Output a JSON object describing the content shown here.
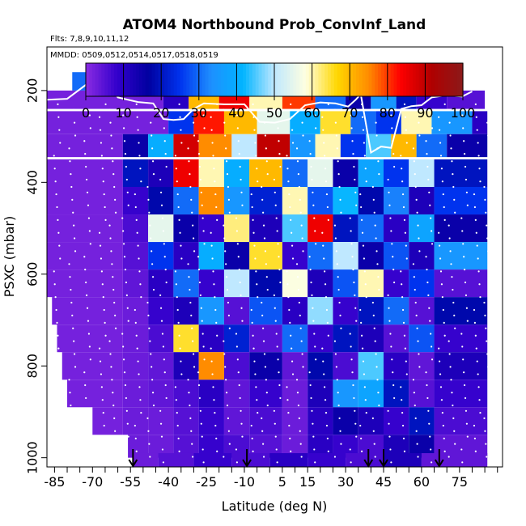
{
  "chart_data": {
    "type": "heatmap",
    "title": "ATOM4 Northbound Prob_ConvInf_Land",
    "flights_note": "Flts: 7,8,9,10,11,12",
    "dates_note": "MMDD: 0509,0512,0514,0517,0518,0519",
    "xlabel": "Latitude (deg N)",
    "ylabel": "PSXC (mbar)",
    "xlim": [
      -88,
      92
    ],
    "ylim": [
      1020,
      105
    ],
    "x_ticks_minor_step": 5,
    "x_tick_labels": [
      "-85",
      "-70",
      "-55",
      "-40",
      "-25",
      "-10",
      "5",
      "15",
      "30",
      "45",
      "60",
      "75"
    ],
    "x_tick_values": [
      -85,
      -70,
      -55,
      -40,
      -25,
      -10,
      5,
      15,
      30,
      45,
      60,
      75
    ],
    "y_tick_labels": [
      "200",
      "400",
      "600",
      "800",
      "1000"
    ],
    "y_tick_values": [
      200,
      400,
      600,
      800,
      1000
    ],
    "colorbar": {
      "min": 0,
      "max": 100,
      "tick_labels": [
        "0",
        "10",
        "20",
        "30",
        "40",
        "50",
        "60",
        "70",
        "80",
        "90",
        "100"
      ],
      "tick_values": [
        0,
        10,
        20,
        30,
        40,
        50,
        60,
        70,
        80,
        90,
        100
      ],
      "colors": [
        "#8a2be2",
        "#3300cc",
        "#0000a0",
        "#0033ee",
        "#1e90ff",
        "#00b4ff",
        "#bfe8ff",
        "#ffffe0",
        "#ffd700",
        "#ff8c00",
        "#ff0000",
        "#b00000",
        "#8b1a1a"
      ]
    },
    "arrows_lat": [
      -54,
      -9,
      39,
      45,
      67
    ],
    "layers": [
      {
        "p": 180,
        "h": 40,
        "cells": [
          [
            -78,
            -8,
            30
          ],
          [
            -8,
            5,
            75
          ],
          [
            5,
            15,
            55
          ],
          [
            15,
            28,
            40
          ],
          [
            28,
            42,
            20
          ],
          [
            42,
            58,
            10
          ],
          [
            58,
            70,
            5
          ]
        ]
      },
      {
        "p": 220,
        "h": 40,
        "cells": [
          [
            -88,
            -42,
            2
          ],
          [
            -42,
            -32,
            10
          ],
          [
            -32,
            -20,
            70
          ],
          [
            -20,
            -8,
            85
          ],
          [
            -8,
            5,
            60
          ],
          [
            5,
            18,
            80
          ],
          [
            18,
            30,
            30
          ],
          [
            30,
            40,
            15
          ],
          [
            40,
            50,
            35
          ],
          [
            50,
            58,
            20
          ],
          [
            58,
            70,
            8
          ],
          [
            70,
            85,
            5
          ]
        ]
      },
      {
        "p": 270,
        "h": 50,
        "cells": [
          [
            -88,
            -40,
            2
          ],
          [
            -40,
            -30,
            25
          ],
          [
            -30,
            -18,
            82
          ],
          [
            -18,
            -5,
            70
          ],
          [
            -5,
            8,
            55
          ],
          [
            8,
            20,
            40
          ],
          [
            20,
            32,
            65
          ],
          [
            32,
            42,
            30
          ],
          [
            42,
            52,
            25
          ],
          [
            52,
            64,
            60
          ],
          [
            64,
            80,
            35
          ],
          [
            80,
            86,
            10
          ]
        ]
      },
      {
        "p": 320,
        "h": 50,
        "cells": [
          [
            -88,
            -58,
            2
          ],
          [
            -58,
            -48,
            15
          ],
          [
            -48,
            -38,
            40
          ],
          [
            -38,
            -28,
            88
          ],
          [
            -28,
            -15,
            75
          ],
          [
            -15,
            -5,
            50
          ],
          [
            -5,
            8,
            90
          ],
          [
            8,
            18,
            35
          ],
          [
            18,
            28,
            60
          ],
          [
            28,
            38,
            25
          ],
          [
            38,
            48,
            45
          ],
          [
            48,
            58,
            70
          ],
          [
            58,
            70,
            30
          ],
          [
            70,
            86,
            15
          ]
        ]
      },
      {
        "p": 380,
        "h": 60,
        "cells": [
          [
            -88,
            -58,
            2
          ],
          [
            -58,
            -48,
            20
          ],
          [
            -48,
            -38,
            12
          ],
          [
            -38,
            -28,
            85
          ],
          [
            -28,
            -18,
            60
          ],
          [
            -18,
            -8,
            40
          ],
          [
            -8,
            5,
            70
          ],
          [
            5,
            15,
            30
          ],
          [
            15,
            25,
            55
          ],
          [
            25,
            35,
            15
          ],
          [
            35,
            45,
            38
          ],
          [
            45,
            55,
            25
          ],
          [
            55,
            65,
            50
          ],
          [
            65,
            86,
            20
          ]
        ]
      },
      {
        "p": 440,
        "h": 60,
        "cells": [
          [
            -88,
            -58,
            2
          ],
          [
            -58,
            -48,
            8
          ],
          [
            -48,
            -38,
            18
          ],
          [
            -38,
            -28,
            30
          ],
          [
            -28,
            -18,
            75
          ],
          [
            -18,
            -8,
            35
          ],
          [
            -8,
            5,
            22
          ],
          [
            5,
            15,
            60
          ],
          [
            15,
            25,
            28
          ],
          [
            25,
            35,
            42
          ],
          [
            35,
            45,
            18
          ],
          [
            45,
            55,
            32
          ],
          [
            55,
            65,
            12
          ],
          [
            65,
            86,
            25
          ]
        ]
      },
      {
        "p": 500,
        "h": 60,
        "cells": [
          [
            -88,
            -58,
            2
          ],
          [
            -58,
            -48,
            6
          ],
          [
            -48,
            -38,
            55
          ],
          [
            -38,
            -28,
            15
          ],
          [
            -28,
            -18,
            8
          ],
          [
            -18,
            -8,
            62
          ],
          [
            -8,
            5,
            12
          ],
          [
            5,
            15,
            45
          ],
          [
            15,
            25,
            85
          ],
          [
            25,
            35,
            20
          ],
          [
            35,
            45,
            30
          ],
          [
            45,
            55,
            10
          ],
          [
            55,
            65,
            38
          ],
          [
            65,
            86,
            15
          ]
        ]
      },
      {
        "p": 560,
        "h": 60,
        "cells": [
          [
            -88,
            -58,
            2
          ],
          [
            -58,
            -48,
            5
          ],
          [
            -48,
            -38,
            25
          ],
          [
            -38,
            -28,
            10
          ],
          [
            -28,
            -18,
            40
          ],
          [
            -18,
            -8,
            15
          ],
          [
            -8,
            5,
            65
          ],
          [
            5,
            15,
            8
          ],
          [
            15,
            25,
            30
          ],
          [
            25,
            35,
            50
          ],
          [
            35,
            45,
            15
          ],
          [
            45,
            55,
            28
          ],
          [
            55,
            65,
            12
          ],
          [
            65,
            86,
            35
          ]
        ]
      },
      {
        "p": 620,
        "h": 60,
        "cells": [
          [
            -88,
            -58,
            2
          ],
          [
            -58,
            -48,
            4
          ],
          [
            -48,
            -38,
            10
          ],
          [
            -38,
            -28,
            30
          ],
          [
            -28,
            -18,
            8
          ],
          [
            -18,
            -8,
            50
          ],
          [
            -8,
            5,
            18
          ],
          [
            5,
            15,
            58
          ],
          [
            15,
            25,
            12
          ],
          [
            25,
            35,
            28
          ],
          [
            35,
            45,
            60
          ],
          [
            45,
            55,
            8
          ],
          [
            55,
            65,
            25
          ],
          [
            65,
            86,
            5
          ]
        ]
      },
      {
        "p": 680,
        "h": 60,
        "cells": [
          [
            -86,
            -58,
            2
          ],
          [
            -58,
            -48,
            3
          ],
          [
            -48,
            -38,
            8
          ],
          [
            -38,
            -28,
            12
          ],
          [
            -28,
            -18,
            35
          ],
          [
            -18,
            -8,
            5
          ],
          [
            -8,
            5,
            28
          ],
          [
            5,
            15,
            10
          ],
          [
            15,
            25,
            48
          ],
          [
            25,
            35,
            8
          ],
          [
            35,
            45,
            20
          ],
          [
            45,
            55,
            30
          ],
          [
            55,
            65,
            5
          ],
          [
            65,
            86,
            18
          ]
        ]
      },
      {
        "p": 740,
        "h": 60,
        "cells": [
          [
            -84,
            -58,
            2
          ],
          [
            -58,
            -48,
            3
          ],
          [
            -48,
            -38,
            6
          ],
          [
            -38,
            -28,
            65
          ],
          [
            -28,
            -18,
            10
          ],
          [
            -18,
            -8,
            22
          ],
          [
            -8,
            5,
            5
          ],
          [
            5,
            15,
            30
          ],
          [
            15,
            25,
            8
          ],
          [
            25,
            35,
            20
          ],
          [
            35,
            45,
            12
          ],
          [
            45,
            55,
            5
          ],
          [
            55,
            65,
            28
          ],
          [
            65,
            86,
            8
          ]
        ]
      },
      {
        "p": 800,
        "h": 60,
        "cells": [
          [
            -82,
            -58,
            2
          ],
          [
            -58,
            -48,
            3
          ],
          [
            -48,
            -38,
            4
          ],
          [
            -38,
            -28,
            12
          ],
          [
            -28,
            -18,
            75
          ],
          [
            -18,
            -8,
            6
          ],
          [
            -8,
            5,
            15
          ],
          [
            5,
            15,
            4
          ],
          [
            15,
            25,
            18
          ],
          [
            25,
            35,
            6
          ],
          [
            35,
            45,
            45
          ],
          [
            45,
            55,
            10
          ],
          [
            55,
            65,
            4
          ],
          [
            65,
            86,
            12
          ]
        ]
      },
      {
        "p": 860,
        "h": 60,
        "cells": [
          [
            -80,
            -58,
            2
          ],
          [
            -58,
            -48,
            3
          ],
          [
            -48,
            -38,
            4
          ],
          [
            -38,
            -28,
            6
          ],
          [
            -28,
            -18,
            10
          ],
          [
            -18,
            -8,
            4
          ],
          [
            -8,
            5,
            8
          ],
          [
            5,
            15,
            3
          ],
          [
            15,
            25,
            12
          ],
          [
            25,
            35,
            35
          ],
          [
            35,
            45,
            38
          ],
          [
            45,
            55,
            20
          ],
          [
            55,
            65,
            5
          ],
          [
            65,
            86,
            8
          ]
        ]
      },
      {
        "p": 920,
        "h": 60,
        "cells": [
          [
            -70,
            -58,
            2
          ],
          [
            -58,
            -48,
            3
          ],
          [
            -48,
            -38,
            3
          ],
          [
            -38,
            -28,
            5
          ],
          [
            -28,
            -18,
            8
          ],
          [
            -18,
            -8,
            4
          ],
          [
            -8,
            5,
            6
          ],
          [
            5,
            15,
            3
          ],
          [
            15,
            25,
            10
          ],
          [
            25,
            35,
            15
          ],
          [
            35,
            45,
            12
          ],
          [
            45,
            55,
            8
          ],
          [
            55,
            65,
            20
          ],
          [
            65,
            86,
            6
          ]
        ]
      },
      {
        "p": 975,
        "h": 50,
        "cells": [
          [
            -56,
            -48,
            3
          ],
          [
            -48,
            -38,
            3
          ],
          [
            -38,
            -28,
            5
          ],
          [
            -28,
            -18,
            8
          ],
          [
            -18,
            -8,
            6
          ],
          [
            -8,
            5,
            5
          ],
          [
            5,
            15,
            3
          ],
          [
            15,
            25,
            10
          ],
          [
            25,
            35,
            8
          ],
          [
            35,
            45,
            6
          ],
          [
            45,
            55,
            12
          ],
          [
            55,
            65,
            15
          ],
          [
            65,
            86,
            4
          ]
        ]
      },
      {
        "p": 1005,
        "h": 30,
        "cells": [
          [
            -54,
            -44,
            3
          ],
          [
            -44,
            -30,
            5
          ],
          [
            -30,
            -15,
            8
          ],
          [
            -15,
            0,
            6
          ],
          [
            0,
            15,
            10
          ],
          [
            15,
            30,
            8
          ],
          [
            30,
            45,
            6
          ],
          [
            45,
            60,
            12
          ],
          [
            60,
            86,
            4
          ]
        ]
      }
    ],
    "profile_dots": [
      -84,
      -78,
      -72,
      -66,
      -62,
      -57,
      -52,
      -47,
      -42,
      -36,
      -31,
      -27,
      -22,
      -17,
      -12,
      -6,
      -2,
      3,
      8,
      12,
      17,
      22,
      27,
      33,
      37,
      42,
      48,
      53,
      58,
      63,
      68,
      72,
      77,
      82,
      86
    ],
    "tropopause": [
      [
        -88,
        220
      ],
      [
        -80,
        218
      ],
      [
        -72,
        185
      ],
      [
        -64,
        182
      ],
      [
        -60,
        215
      ],
      [
        -52,
        225
      ],
      [
        -46,
        228
      ],
      [
        -42,
        262
      ],
      [
        -38,
        264
      ],
      [
        -34,
        262
      ],
      [
        -30,
        240
      ],
      [
        -26,
        228
      ],
      [
        -18,
        230
      ],
      [
        -10,
        230
      ],
      [
        -4,
        268
      ],
      [
        2,
        270
      ],
      [
        8,
        262
      ],
      [
        14,
        232
      ],
      [
        20,
        226
      ],
      [
        26,
        228
      ],
      [
        31,
        235
      ],
      [
        34,
        220
      ],
      [
        36,
        208
      ],
      [
        40,
        335
      ],
      [
        44,
        322
      ],
      [
        48,
        325
      ],
      [
        52,
        240
      ],
      [
        56,
        234
      ],
      [
        60,
        232
      ],
      [
        64,
        215
      ],
      [
        70,
        210
      ],
      [
        76,
        213
      ],
      [
        80,
        202
      ]
    ]
  }
}
